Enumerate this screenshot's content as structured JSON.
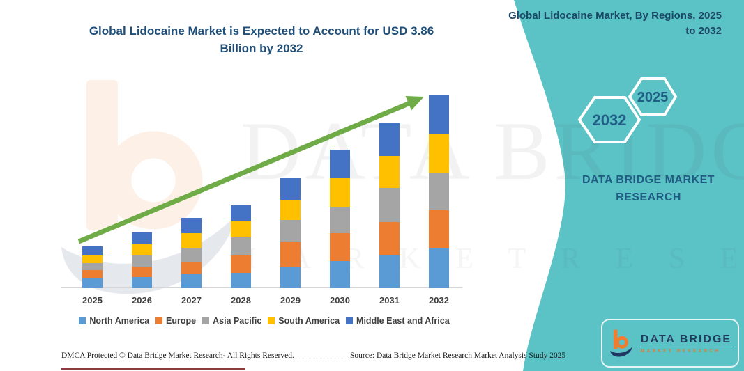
{
  "title": "Global Lidocaine Market is Expected to Account for USD 3.86 Billion by 2032",
  "side_panel": {
    "header": "Global Lidocaine Market, By Regions, 2025 to 2032",
    "hex_front_label": "2032",
    "hex_back_label": "2025",
    "brand_text": "DATA BRIDGE MARKET RESEARCH"
  },
  "watermark": {
    "line1": "DATA BRIDGE",
    "line2": "M A R K E T  R E S E A R C H"
  },
  "footer": {
    "dmca": "DMCA Protected © Data Bridge Market Research-  All Rights Reserved.",
    "source": "Source: Data Bridge Market Research  Market Analysis Study 2025"
  },
  "logo": {
    "name": "DATA BRIDGE",
    "subtext": "MARKET RESEARCH"
  },
  "colors": {
    "teal_panel": "#5BC2C5",
    "title_navy": "#1F4E79",
    "arrow_green": "#6FAC47",
    "axis_gray": "#D6D6D6",
    "label_gray": "#3F3F3F",
    "logo_orange": "#ED7D31",
    "logo_navy": "#1F3864"
  },
  "chart_data": {
    "type": "bar",
    "stacked": true,
    "unit": "USD Billion",
    "title": "Global Lidocaine Market is Expected to Account for USD 3.86 Billion by 2032",
    "categories": [
      "2025",
      "2026",
      "2027",
      "2028",
      "2029",
      "2030",
      "2031",
      "2032"
    ],
    "series": [
      {
        "name": "North America",
        "color": "#5B9BD5",
        "values": [
          0.19,
          0.22,
          0.29,
          0.31,
          0.43,
          0.54,
          0.67,
          0.79
        ]
      },
      {
        "name": "Europe",
        "color": "#ED7D31",
        "values": [
          0.17,
          0.21,
          0.24,
          0.35,
          0.5,
          0.56,
          0.65,
          0.76
        ]
      },
      {
        "name": "Asia Pacific",
        "color": "#A5A5A5",
        "values": [
          0.14,
          0.22,
          0.28,
          0.35,
          0.43,
          0.53,
          0.68,
          0.76
        ]
      },
      {
        "name": "South America",
        "color": "#FFC000",
        "values": [
          0.15,
          0.22,
          0.29,
          0.32,
          0.4,
          0.57,
          0.64,
          0.78
        ]
      },
      {
        "name": "Middle East and Africa",
        "color": "#4472C4",
        "values": [
          0.19,
          0.24,
          0.31,
          0.33,
          0.44,
          0.56,
          0.65,
          0.77
        ]
      }
    ],
    "totals": [
      0.84,
      1.11,
      1.41,
      1.66,
      2.2,
      2.76,
      3.29,
      3.86
    ],
    "xlabel": "",
    "ylabel": "",
    "ylim": [
      0,
      4.2
    ],
    "gridlines": false,
    "legend_position": "bottom",
    "annotations": [
      "upward trend arrow"
    ]
  }
}
